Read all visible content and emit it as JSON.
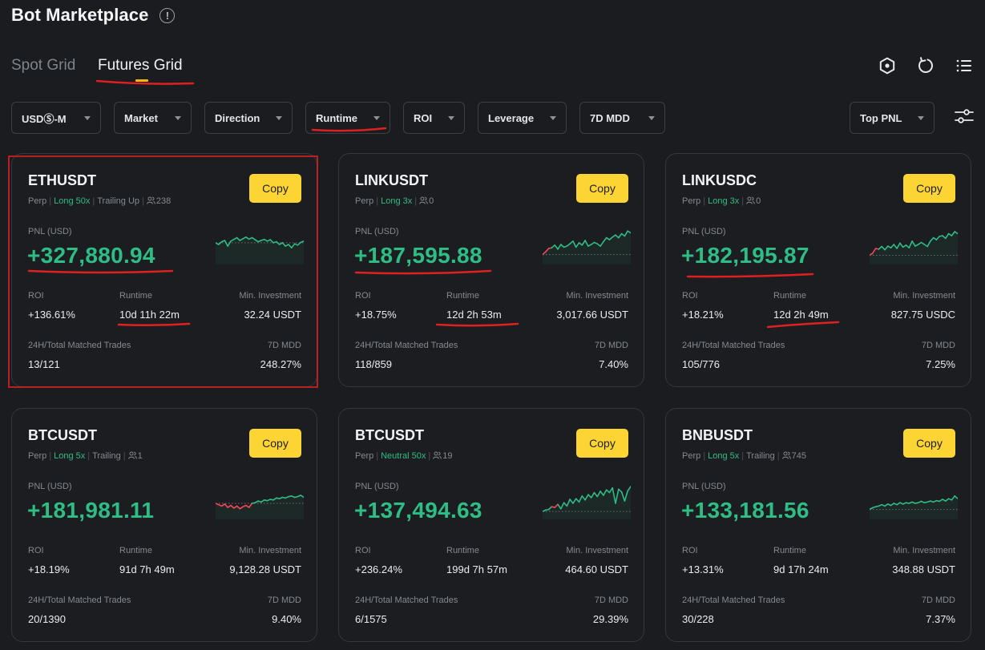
{
  "header": {
    "title": "Bot Marketplace",
    "info_glyph": "!"
  },
  "tabs": [
    {
      "label": "Spot Grid",
      "active": false
    },
    {
      "label": "Futures Grid",
      "active": true
    }
  ],
  "toolbar_icons": [
    "hexagon-icon",
    "refresh-icon",
    "list-icon"
  ],
  "filters": [
    "USDⓈ-M",
    "Market",
    "Direction",
    "Runtime",
    "ROI",
    "Leverage",
    "7D MDD"
  ],
  "sort": {
    "label": "Top PNL"
  },
  "labels": {
    "copy": "Copy",
    "pnl": "PNL (USD)",
    "roi": "ROI",
    "runtime": "Runtime",
    "min_investment": "Min. Investment",
    "trades": "24H/Total Matched Trades",
    "mdd": "7D MDD"
  },
  "colors": {
    "accent": "#fcd535",
    "positive": "#2ebd85",
    "negative": "#f6465d",
    "annotation": "#e02020"
  },
  "cards": [
    {
      "symbol": "ETHUSDT",
      "type": "Perp",
      "direction": "Long 50x",
      "extra": "Trailing Up",
      "copiers": "238",
      "pnl": "+327,880.94",
      "roi": "+136.61%",
      "runtime": "10d 11h 22m",
      "min_investment": "32.24 USDT",
      "trades": "13/121",
      "mdd": "248.27%",
      "sparkline": [
        0.45,
        0.5,
        0.42,
        0.38,
        0.55,
        0.4,
        0.35,
        0.3,
        0.38,
        0.33,
        0.28,
        0.34,
        0.3,
        0.36,
        0.42,
        0.38,
        0.35,
        0.4,
        0.36,
        0.45,
        0.42,
        0.5,
        0.45,
        0.55,
        0.5,
        0.6,
        0.48,
        0.52,
        0.44,
        0.4
      ],
      "spark_neg": []
    },
    {
      "symbol": "LINKUSDT",
      "type": "Perp",
      "direction": "Long 3x",
      "extra": "",
      "copiers": "0",
      "pnl": "+187,595.88",
      "roi": "+18.75%",
      "runtime": "12d 2h 53m",
      "min_investment": "3,017.66 USDT",
      "trades": "118/859",
      "mdd": "7.40%",
      "sparkline": [
        0.8,
        0.72,
        0.62,
        0.6,
        0.52,
        0.64,
        0.5,
        0.58,
        0.55,
        0.48,
        0.4,
        0.58,
        0.45,
        0.52,
        0.38,
        0.55,
        0.5,
        0.44,
        0.48,
        0.55,
        0.42,
        0.3,
        0.36,
        0.28,
        0.22,
        0.3,
        0.18,
        0.25,
        0.1,
        0.16
      ],
      "spark_neg": [
        0,
        1,
        2
      ]
    },
    {
      "symbol": "LINKUSDC",
      "type": "Perp",
      "direction": "Long 3x",
      "extra": "",
      "copiers": "0",
      "pnl": "+182,195.87",
      "roi": "+18.21%",
      "runtime": "12d 2h 49m",
      "min_investment": "827.75 USDC",
      "trades": "105/776",
      "mdd": "7.25%",
      "sparkline": [
        0.82,
        0.76,
        0.62,
        0.64,
        0.56,
        0.66,
        0.55,
        0.6,
        0.5,
        0.62,
        0.46,
        0.58,
        0.52,
        0.6,
        0.4,
        0.55,
        0.5,
        0.44,
        0.5,
        0.56,
        0.4,
        0.3,
        0.36,
        0.26,
        0.24,
        0.32,
        0.18,
        0.24,
        0.12,
        0.18
      ],
      "spark_neg": [
        0,
        1,
        2
      ]
    },
    {
      "symbol": "BTCUSDT",
      "type": "Perp",
      "direction": "Long 5x",
      "extra": "Trailing",
      "copiers": "1",
      "pnl": "+181,981.11",
      "roi": "+18.19%",
      "runtime": "91d 7h 49m",
      "min_investment": "9,128.28 USDT",
      "trades": "20/1390",
      "mdd": "9.40%",
      "sparkline": [
        0.62,
        0.66,
        0.7,
        0.64,
        0.74,
        0.68,
        0.76,
        0.7,
        0.78,
        0.72,
        0.68,
        0.74,
        0.62,
        0.6,
        0.55,
        0.58,
        0.52,
        0.54,
        0.5,
        0.52,
        0.46,
        0.48,
        0.44,
        0.46,
        0.42,
        0.4,
        0.44,
        0.42,
        0.38,
        0.44
      ],
      "spark_neg": [
        0,
        1,
        2,
        3,
        4,
        5,
        6,
        7,
        8,
        9,
        10,
        11
      ]
    },
    {
      "symbol": "BTCUSDT",
      "type": "Perp",
      "direction": "Neutral 50x",
      "extra": "",
      "copiers": "19",
      "pnl": "+137,494.63",
      "roi": "+236.24%",
      "runtime": "199d 7h 57m",
      "min_investment": "464.60 USDT",
      "trades": "6/1575",
      "mdd": "29.39%",
      "sparkline": [
        0.86,
        0.82,
        0.8,
        0.72,
        0.74,
        0.65,
        0.78,
        0.6,
        0.7,
        0.5,
        0.62,
        0.48,
        0.58,
        0.4,
        0.52,
        0.36,
        0.45,
        0.3,
        0.42,
        0.26,
        0.38,
        0.22,
        0.3,
        0.16,
        0.62,
        0.2,
        0.28,
        0.55,
        0.25,
        0.12
      ],
      "spark_neg": [
        3,
        4
      ]
    },
    {
      "symbol": "BNBUSDT",
      "type": "Perp",
      "direction": "Long 5x",
      "extra": "Trailing",
      "copiers": "745",
      "pnl": "+133,181.56",
      "roi": "+13.31%",
      "runtime": "9d 17h 24m",
      "min_investment": "348.88 USDT",
      "trades": "30/228",
      "mdd": "7.37%",
      "sparkline": [
        0.8,
        0.75,
        0.72,
        0.7,
        0.66,
        0.7,
        0.64,
        0.68,
        0.62,
        0.66,
        0.6,
        0.64,
        0.6,
        0.62,
        0.58,
        0.62,
        0.6,
        0.56,
        0.6,
        0.58,
        0.55,
        0.58,
        0.54,
        0.56,
        0.5,
        0.55,
        0.48,
        0.52,
        0.4,
        0.48
      ],
      "spark_neg": []
    }
  ]
}
